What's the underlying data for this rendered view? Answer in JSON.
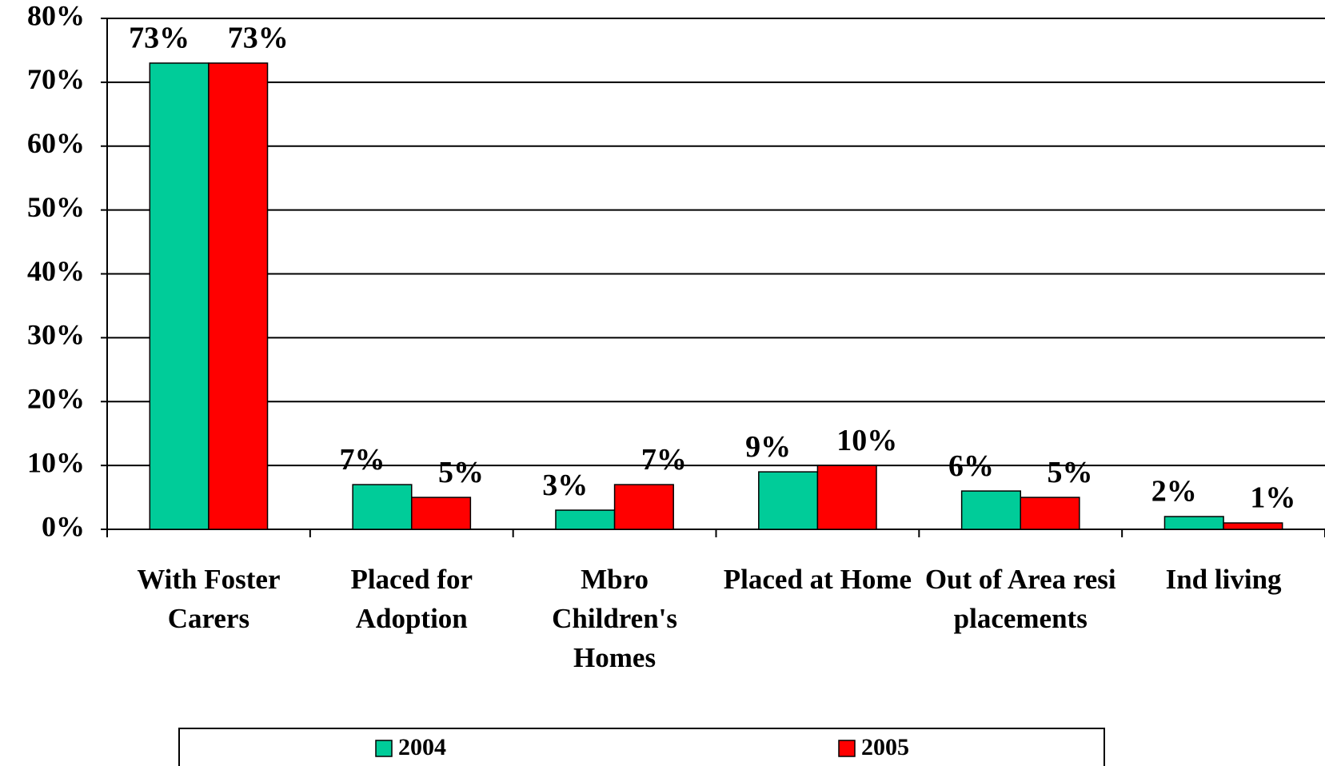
{
  "chart_data": {
    "type": "bar",
    "categories": [
      "With Foster Carers",
      "Placed for Adoption",
      "Mbro Children's Homes",
      "Placed at Home",
      "Out of Area resi placements",
      "Ind living"
    ],
    "series": [
      {
        "name": "2004",
        "color": "#00cc99",
        "values": [
          73,
          7,
          3,
          9,
          6,
          2
        ],
        "value_labels": [
          "73%",
          "7%",
          "3%",
          "9%",
          "6%",
          "2%"
        ]
      },
      {
        "name": "2005",
        "color": "#ff0000",
        "values": [
          73,
          5,
          7,
          10,
          5,
          1
        ],
        "value_labels": [
          "73%",
          "5%",
          "7%",
          "10%",
          "5%",
          "1%"
        ]
      }
    ],
    "ylim": [
      0,
      80
    ],
    "yticks": [
      {
        "value": 0,
        "label": "0%"
      },
      {
        "value": 10,
        "label": "10%"
      },
      {
        "value": 20,
        "label": "20%"
      },
      {
        "value": 30,
        "label": "30%"
      },
      {
        "value": 40,
        "label": "40%"
      },
      {
        "value": 50,
        "label": "50%"
      },
      {
        "value": 60,
        "label": "60%"
      },
      {
        "value": 70,
        "label": "70%"
      },
      {
        "value": 80,
        "label": "80%"
      }
    ],
    "grid": true,
    "legend": "bottom"
  }
}
